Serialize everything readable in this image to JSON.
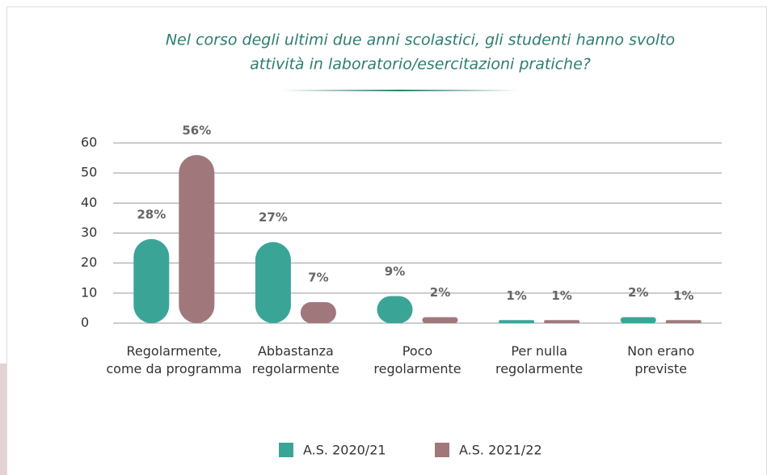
{
  "chart_data": {
    "type": "bar",
    "title": [
      "Nel corso degli ultimi due anni scolastici, gli studenti hanno svolto",
      "attività in laboratorio/esercitazioni pratiche?"
    ],
    "categories": [
      "Regolarmente,\ncome da programma",
      "Abbastanza\nregolarmente",
      "Poco\nregolarmente",
      "Per nulla\nregolarmente",
      "Non erano\npreviste"
    ],
    "series": [
      {
        "name": "A.S. 2020/21",
        "color": "#3aa597",
        "values": [
          28,
          27,
          9,
          1,
          2
        ],
        "value_labels": [
          "28%",
          "27%",
          "9%",
          "1%",
          "2%"
        ]
      },
      {
        "name": "A.S. 2021/22",
        "color": "#a0787c",
        "values": [
          56,
          7,
          2,
          1,
          1
        ],
        "value_labels": [
          "56%",
          "7%",
          "2%",
          "1%",
          "1%"
        ]
      }
    ],
    "ylim": [
      0,
      60
    ],
    "yticks": [
      0,
      10,
      20,
      30,
      40,
      50,
      60
    ],
    "grid": true,
    "legend": "bottom"
  }
}
